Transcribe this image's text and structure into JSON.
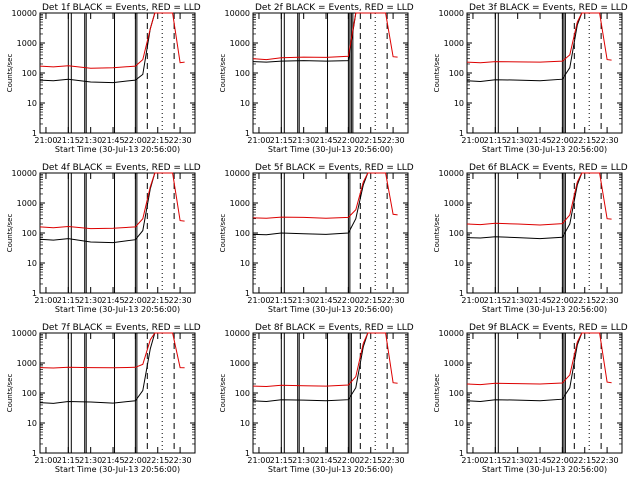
{
  "figure": {
    "common": {
      "ylabel": "Counts/sec",
      "xlabel": "Start Time (30-Jul-13 20:56:00)",
      "x_tick_labels": [
        "21:00",
        "21:15",
        "21:30",
        "21:45",
        "22:00",
        "22:15",
        "22:30"
      ],
      "y_tick_labels": [
        "1",
        "10",
        "100",
        "1000",
        "10000"
      ],
      "colors": {
        "events": "#000000",
        "lld": "#dd0000"
      }
    }
  },
  "chart_data": [
    {
      "type": "line",
      "title": "Det 1f BLACK = Events, RED = LLD",
      "xlabel": "Start Time (30-Jul-13 20:56:00)",
      "ylabel": "Counts/sec",
      "x_range": [
        "20:56",
        "22:40"
      ],
      "ylim": [
        1,
        10000
      ],
      "y_scale": "log",
      "x": [
        "20:56",
        "21:05",
        "21:15",
        "21:30",
        "21:45",
        "22:00",
        "22:05",
        "22:10",
        "22:13",
        "22:20",
        "22:25",
        "22:30",
        "22:33"
      ],
      "series": [
        {
          "name": "BLACK = Events",
          "values": [
            58,
            55,
            62,
            50,
            48,
            58,
            90,
            3000,
            10000,
            10000,
            10000,
            null,
            null
          ]
        },
        {
          "name": "RED = LLD",
          "values": [
            170,
            160,
            175,
            145,
            150,
            170,
            280,
            3000,
            10000,
            10000,
            10000,
            220,
            230
          ]
        }
      ],
      "vlines_solid": [
        "21:15",
        "21:17",
        "21:26",
        "21:27",
        "21:46",
        "22:00",
        "22:01"
      ],
      "vlines_dashed": [
        "22:08",
        "22:26"
      ],
      "vlines_dotted": [
        "22:18"
      ]
    },
    {
      "type": "line",
      "title": "Det 2f BLACK = Events, RED = LLD",
      "xlabel": "Start Time (30-Jul-13 20:56:00)",
      "ylabel": "Counts/sec",
      "x_range": [
        "20:56",
        "22:40"
      ],
      "ylim": [
        1,
        10000
      ],
      "y_scale": "log",
      "x": [
        "20:56",
        "21:05",
        "21:15",
        "21:30",
        "21:45",
        "22:00",
        "22:05",
        "22:10",
        "22:13",
        "22:20",
        "22:25",
        "22:30",
        "22:33"
      ],
      "series": [
        {
          "name": "BLACK = Events",
          "values": [
            240,
            230,
            250,
            260,
            250,
            260,
            10000,
            10000,
            10000,
            10000,
            10000,
            null,
            null
          ]
        },
        {
          "name": "RED = LLD",
          "values": [
            300,
            280,
            320,
            340,
            330,
            360,
            10000,
            10000,
            10000,
            10000,
            10000,
            350,
            340
          ]
        }
      ],
      "vlines_solid": [
        "21:15",
        "21:17",
        "21:26",
        "21:27",
        "21:46",
        "22:00",
        "22:01",
        "22:02",
        "22:03"
      ],
      "vlines_dashed": [
        "22:08",
        "22:26"
      ],
      "vlines_dotted": [
        "22:18"
      ]
    },
    {
      "type": "line",
      "title": "Det 3f BLACK = Events, RED = LLD",
      "xlabel": "Start Time (30-Jul-13 20:56:00)",
      "ylabel": "Counts/sec",
      "x_range": [
        "20:56",
        "22:40"
      ],
      "ylim": [
        1,
        10000
      ],
      "y_scale": "log",
      "x": [
        "20:56",
        "21:05",
        "21:15",
        "21:30",
        "21:45",
        "22:00",
        "22:05",
        "22:10",
        "22:13",
        "22:20",
        "22:25",
        "22:30",
        "22:33"
      ],
      "series": [
        {
          "name": "BLACK = Events",
          "values": [
            55,
            52,
            60,
            58,
            55,
            62,
            150,
            4000,
            10000,
            10000,
            10000,
            null,
            null
          ]
        },
        {
          "name": "RED = LLD",
          "values": [
            230,
            220,
            240,
            235,
            230,
            250,
            400,
            5000,
            10000,
            10000,
            10000,
            280,
            270
          ]
        }
      ],
      "vlines_solid": [
        "21:15",
        "21:17",
        "22:00",
        "22:01",
        "22:02"
      ],
      "vlines_dashed": [
        "22:08",
        "22:26"
      ],
      "vlines_dotted": [
        "22:18"
      ]
    },
    {
      "type": "line",
      "title": "Det 4f BLACK = Events, RED = LLD",
      "xlabel": "Start Time (30-Jul-13 20:56:00)",
      "ylabel": "Counts/sec",
      "x_range": [
        "20:56",
        "22:40"
      ],
      "ylim": [
        1,
        10000
      ],
      "y_scale": "log",
      "x": [
        "20:56",
        "21:05",
        "21:15",
        "21:30",
        "21:45",
        "22:00",
        "22:05",
        "22:10",
        "22:13",
        "22:20",
        "22:25",
        "22:30",
        "22:33"
      ],
      "series": [
        {
          "name": "BLACK = Events",
          "values": [
            62,
            58,
            65,
            50,
            48,
            60,
            120,
            3000,
            10000,
            10000,
            10000,
            null,
            null
          ]
        },
        {
          "name": "RED = LLD",
          "values": [
            160,
            150,
            165,
            140,
            145,
            160,
            300,
            3500,
            10000,
            10000,
            10000,
            260,
            250
          ]
        }
      ],
      "vlines_solid": [
        "21:15",
        "21:17",
        "21:26",
        "21:27",
        "21:46",
        "22:00",
        "22:01"
      ],
      "vlines_dashed": [
        "22:08",
        "22:26"
      ],
      "vlines_dotted": [
        "22:18"
      ]
    },
    {
      "type": "line",
      "title": "Det 5f BLACK = Events, RED = LLD",
      "xlabel": "Start Time (30-Jul-13 20:56:00)",
      "ylabel": "Counts/sec",
      "x_range": [
        "20:56",
        "22:40"
      ],
      "ylim": [
        1,
        10000
      ],
      "y_scale": "log",
      "x": [
        "20:56",
        "21:05",
        "21:15",
        "21:30",
        "21:45",
        "22:00",
        "22:05",
        "22:10",
        "22:13",
        "22:20",
        "22:25",
        "22:30",
        "22:33"
      ],
      "series": [
        {
          "name": "BLACK = Events",
          "values": [
            90,
            88,
            100,
            95,
            90,
            100,
            300,
            4000,
            10000,
            10000,
            10000,
            null,
            null
          ]
        },
        {
          "name": "RED = LLD",
          "values": [
            320,
            310,
            340,
            330,
            310,
            330,
            600,
            5000,
            10000,
            10000,
            10000,
            420,
            400
          ]
        }
      ],
      "vlines_solid": [
        "21:15",
        "21:17",
        "22:00",
        "22:01"
      ],
      "vlines_dashed": [
        "22:08",
        "22:26"
      ],
      "vlines_dotted": [
        "22:18"
      ]
    },
    {
      "type": "line",
      "title": "Det 6f BLACK = Events, RED = LLD",
      "xlabel": "Start Time (30-Jul-13 20:56:00)",
      "ylabel": "Counts/sec",
      "x_range": [
        "20:56",
        "22:40"
      ],
      "ylim": [
        1,
        10000
      ],
      "y_scale": "log",
      "x": [
        "20:56",
        "21:05",
        "21:15",
        "21:30",
        "21:45",
        "22:00",
        "22:05",
        "22:10",
        "22:13",
        "22:20",
        "22:25",
        "22:30",
        "22:33"
      ],
      "series": [
        {
          "name": "BLACK = Events",
          "values": [
            70,
            68,
            75,
            70,
            65,
            72,
            200,
            4000,
            10000,
            10000,
            10000,
            null,
            null
          ]
        },
        {
          "name": "RED = LLD",
          "values": [
            200,
            190,
            210,
            200,
            185,
            205,
            400,
            5000,
            10000,
            10000,
            10000,
            300,
            290
          ]
        }
      ],
      "vlines_solid": [
        "21:15",
        "21:17",
        "22:00",
        "22:01",
        "22:02"
      ],
      "vlines_dashed": [
        "22:08",
        "22:26"
      ],
      "vlines_dotted": [
        "22:18"
      ]
    },
    {
      "type": "line",
      "title": "Det 7f BLACK = Events, RED = LLD",
      "xlabel": "Start Time (30-Jul-13 20:56:00)",
      "ylabel": "Counts/sec",
      "x_range": [
        "20:56",
        "22:40"
      ],
      "ylim": [
        1,
        10000
      ],
      "y_scale": "log",
      "x": [
        "20:56",
        "21:05",
        "21:15",
        "21:30",
        "21:45",
        "22:00",
        "22:05",
        "22:10",
        "22:13",
        "22:20",
        "22:25",
        "22:30",
        "22:33"
      ],
      "series": [
        {
          "name": "BLACK = Events",
          "values": [
            48,
            45,
            52,
            50,
            46,
            55,
            120,
            3000,
            10000,
            10000,
            10000,
            null,
            null
          ]
        },
        {
          "name": "RED = LLD",
          "values": [
            700,
            680,
            720,
            700,
            690,
            720,
            900,
            6000,
            10000,
            10000,
            10000,
            700,
            690
          ]
        }
      ],
      "vlines_solid": [
        "21:15",
        "21:17",
        "21:26",
        "21:27",
        "21:46",
        "22:00",
        "22:01"
      ],
      "vlines_dashed": [
        "22:08",
        "22:26"
      ],
      "vlines_dotted": [
        "22:18"
      ]
    },
    {
      "type": "line",
      "title": "Det 8f BLACK = Events, RED = LLD",
      "xlabel": "Start Time (30-Jul-13 20:56:00)",
      "ylabel": "Counts/sec",
      "x_range": [
        "20:56",
        "22:40"
      ],
      "ylim": [
        1,
        10000
      ],
      "y_scale": "log",
      "x": [
        "20:56",
        "21:05",
        "21:15",
        "21:30",
        "21:45",
        "22:00",
        "22:05",
        "22:10",
        "22:13",
        "22:20",
        "22:25",
        "22:30",
        "22:33"
      ],
      "series": [
        {
          "name": "BLACK = Events",
          "values": [
            55,
            52,
            60,
            58,
            55,
            60,
            150,
            3500,
            10000,
            10000,
            10000,
            null,
            null
          ]
        },
        {
          "name": "RED = LLD",
          "values": [
            170,
            165,
            180,
            175,
            170,
            185,
            350,
            4500,
            10000,
            10000,
            10000,
            220,
            210
          ]
        }
      ],
      "vlines_solid": [
        "21:15",
        "21:17",
        "21:26",
        "21:27",
        "21:46",
        "22:00",
        "22:01",
        "22:02"
      ],
      "vlines_dashed": [
        "22:08",
        "22:26"
      ],
      "vlines_dotted": [
        "22:18"
      ]
    },
    {
      "type": "line",
      "title": "Det 9f BLACK = Events, RED = LLD",
      "xlabel": "Start Time (30-Jul-13 20:56:00)",
      "ylabel": "Counts/sec",
      "x_range": [
        "20:56",
        "22:40"
      ],
      "ylim": [
        1,
        10000
      ],
      "y_scale": "log",
      "x": [
        "20:56",
        "21:05",
        "21:15",
        "21:30",
        "21:45",
        "22:00",
        "22:05",
        "22:10",
        "22:13",
        "22:20",
        "22:25",
        "22:30",
        "22:33"
      ],
      "series": [
        {
          "name": "BLACK = Events",
          "values": [
            55,
            52,
            60,
            58,
            55,
            62,
            150,
            4000,
            10000,
            10000,
            10000,
            null,
            null
          ]
        },
        {
          "name": "RED = LLD",
          "values": [
            200,
            190,
            210,
            205,
            200,
            215,
            400,
            5000,
            10000,
            10000,
            10000,
            230,
            220
          ]
        }
      ],
      "vlines_solid": [
        "21:15",
        "21:17",
        "22:00",
        "22:01",
        "22:02"
      ],
      "vlines_dashed": [
        "22:08",
        "22:26"
      ],
      "vlines_dotted": [
        "22:18"
      ]
    }
  ]
}
